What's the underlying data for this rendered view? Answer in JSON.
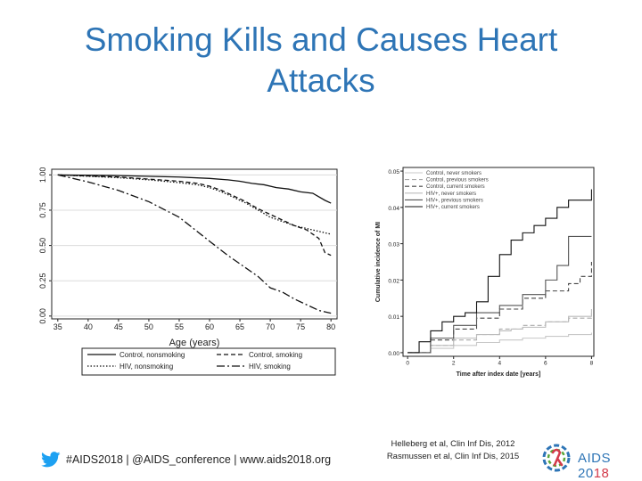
{
  "slide": {
    "title": "Smoking Kills and Causes Heart Attacks",
    "footer_text": "#AIDS2018 | @AIDS_conference | www.aids2018.org",
    "references": [
      "Helleberg et al, Clin Inf Dis, 2012",
      "Rasmussen et al, Clin Inf Dis, 2015"
    ],
    "logo": {
      "text_main": "AIDS 20",
      "text_accent": "18"
    },
    "colors": {
      "title": "#2e75b6",
      "twitter": "#1da1f2"
    }
  },
  "chart_data": [
    {
      "type": "line",
      "title": "",
      "xlabel": "Age (years)",
      "ylabel": "",
      "xlim": [
        34,
        81
      ],
      "ylim": [
        -0.02,
        1.04
      ],
      "xticks": [
        35,
        40,
        45,
        50,
        55,
        60,
        65,
        70,
        75,
        80
      ],
      "yticks": [
        0.0,
        0.25,
        0.5,
        0.75,
        1.0
      ],
      "ytick_labels": [
        "0.00",
        "0.25",
        "0.50",
        "0.75",
        "1.00"
      ],
      "legend_position": "bottom",
      "series": [
        {
          "name": "Control, nonsmoking",
          "style": "solid",
          "x": [
            35,
            45,
            55,
            60,
            63,
            65,
            67,
            69,
            71,
            73,
            75,
            77,
            79,
            80
          ],
          "y": [
            1.0,
            0.995,
            0.985,
            0.975,
            0.965,
            0.955,
            0.94,
            0.93,
            0.91,
            0.9,
            0.88,
            0.87,
            0.82,
            0.8
          ]
        },
        {
          "name": "Control, smoking",
          "style": "dash",
          "x": [
            35,
            45,
            50,
            55,
            58,
            60,
            62,
            64,
            66,
            68,
            70,
            72,
            74,
            76,
            78,
            79,
            80
          ],
          "y": [
            1.0,
            0.985,
            0.97,
            0.955,
            0.94,
            0.92,
            0.89,
            0.85,
            0.81,
            0.76,
            0.72,
            0.68,
            0.64,
            0.61,
            0.55,
            0.45,
            0.43
          ]
        },
        {
          "name": "HIV, nonsmoking",
          "style": "dot",
          "x": [
            35,
            45,
            50,
            55,
            58,
            60,
            62,
            64,
            66,
            68,
            70,
            72,
            74,
            76,
            78,
            80
          ],
          "y": [
            1.0,
            0.98,
            0.965,
            0.945,
            0.93,
            0.91,
            0.88,
            0.84,
            0.8,
            0.75,
            0.7,
            0.67,
            0.64,
            0.62,
            0.6,
            0.58
          ]
        },
        {
          "name": "HIV, smoking",
          "style": "longdash",
          "x": [
            35,
            40,
            45,
            50,
            55,
            60,
            63,
            66,
            68,
            70,
            72,
            74,
            76,
            78,
            80
          ],
          "y": [
            1.0,
            0.95,
            0.89,
            0.81,
            0.7,
            0.53,
            0.43,
            0.34,
            0.28,
            0.2,
            0.17,
            0.12,
            0.08,
            0.04,
            0.02
          ]
        }
      ]
    },
    {
      "type": "line",
      "title": "",
      "xlabel": "Time after index date [years]",
      "ylabel": "Cumulative incidence of MI",
      "xlim": [
        -0.2,
        8.1
      ],
      "ylim": [
        -0.001,
        0.051
      ],
      "xticks": [
        0,
        2,
        4,
        6,
        8
      ],
      "yticks": [
        0.0,
        0.01,
        0.02,
        0.03,
        0.04,
        0.05
      ],
      "ytick_labels": [
        "0.00",
        "0.01",
        "0.02",
        "0.03",
        "0.04",
        "0.05"
      ],
      "legend_position": "top-right",
      "series": [
        {
          "name": "Control, never smokers",
          "style": "solid",
          "color": "#c8c8c8",
          "x": [
            0,
            1,
            2,
            3,
            4,
            5,
            6,
            7,
            8
          ],
          "y": [
            0,
            0.0012,
            0.002,
            0.0028,
            0.0035,
            0.004,
            0.0045,
            0.005,
            0.0055
          ]
        },
        {
          "name": "Control, previous smokers",
          "style": "dash",
          "color": "#aaaaaa",
          "x": [
            0,
            1,
            2,
            3,
            4,
            5,
            6,
            7,
            8
          ],
          "y": [
            0,
            0.002,
            0.0035,
            0.005,
            0.0065,
            0.0075,
            0.0085,
            0.0095,
            0.011
          ]
        },
        {
          "name": "Control, current smokers",
          "style": "dash",
          "color": "#444444",
          "x": [
            0,
            1,
            2,
            3,
            4,
            5,
            6,
            7,
            7.5,
            8
          ],
          "y": [
            0,
            0.0035,
            0.0065,
            0.0095,
            0.012,
            0.015,
            0.017,
            0.019,
            0.021,
            0.025
          ]
        },
        {
          "name": "HIV+, never smokers",
          "style": "solid",
          "color": "#bbbbbb",
          "x": [
            0,
            1,
            2,
            3,
            4,
            4.5,
            5,
            6,
            7,
            8
          ],
          "y": [
            0,
            0.002,
            0.004,
            0.005,
            0.006,
            0.0065,
            0.007,
            0.0085,
            0.01,
            0.012
          ]
        },
        {
          "name": "HIV+, previous smokers",
          "style": "solid",
          "color": "#555555",
          "x": [
            0,
            1,
            2,
            3,
            4,
            5,
            6,
            6.5,
            7,
            8
          ],
          "y": [
            0,
            0.004,
            0.0075,
            0.011,
            0.013,
            0.016,
            0.02,
            0.024,
            0.032,
            0.032
          ]
        },
        {
          "name": "HIV+, current smokers",
          "style": "solid",
          "color": "#111111",
          "x": [
            0,
            0.5,
            1,
            1.5,
            2,
            2.5,
            3,
            3.5,
            4,
            4.5,
            5,
            5.5,
            6,
            6.5,
            7,
            7.5,
            8
          ],
          "y": [
            0,
            0.003,
            0.006,
            0.0085,
            0.01,
            0.011,
            0.014,
            0.021,
            0.027,
            0.031,
            0.033,
            0.035,
            0.037,
            0.04,
            0.042,
            0.042,
            0.045
          ]
        }
      ]
    }
  ]
}
